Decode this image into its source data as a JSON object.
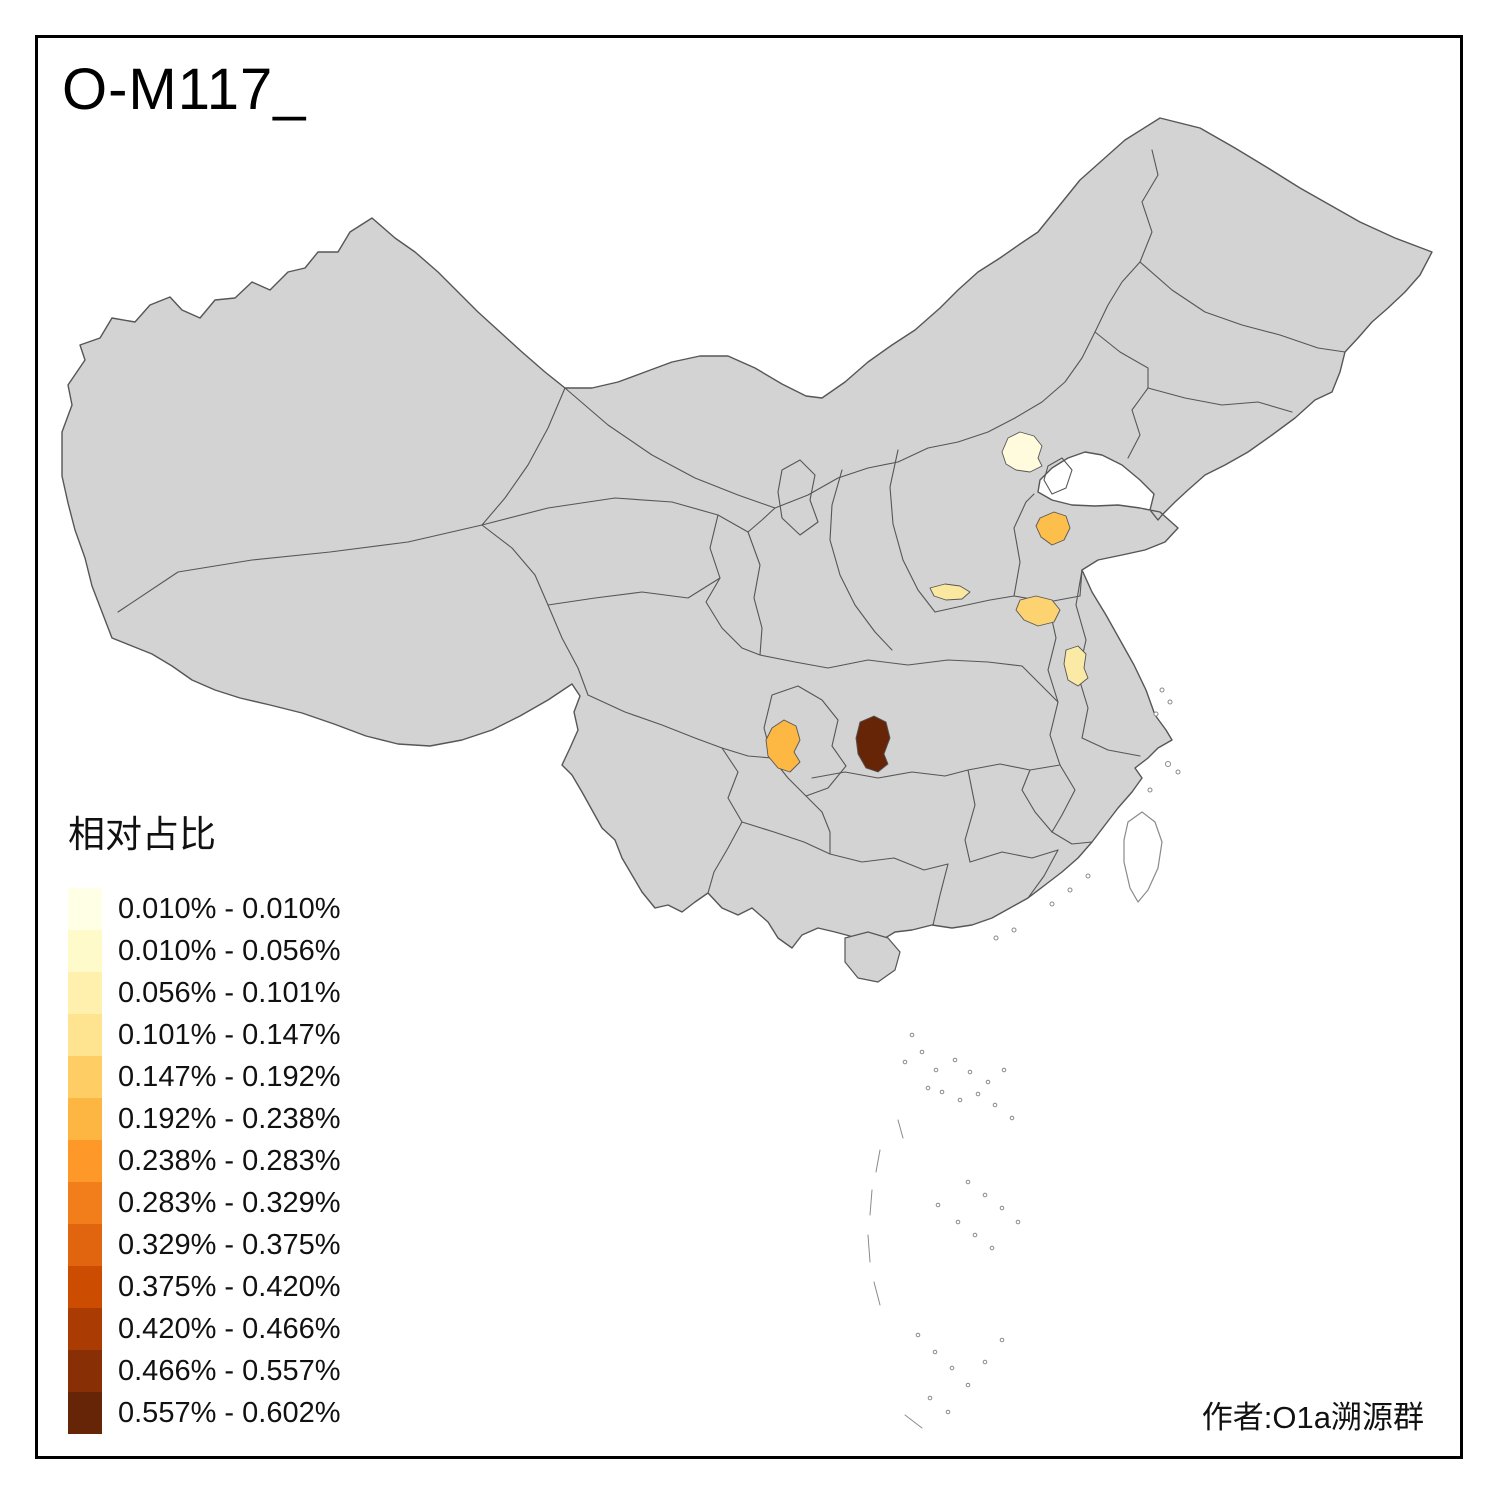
{
  "title": "O-M117_",
  "author_credit": "作者:O1a溯源群",
  "legend": {
    "title": "相对占比",
    "items": [
      {
        "color": "#FFFFE5",
        "label": "0.010% - 0.010%"
      },
      {
        "color": "#FFFACA",
        "label": "0.010% - 0.056%"
      },
      {
        "color": "#FFF0AE",
        "label": "0.056% - 0.101%"
      },
      {
        "color": "#FEE391",
        "label": "0.101% - 0.147%"
      },
      {
        "color": "#FECE65",
        "label": "0.147% - 0.192%"
      },
      {
        "color": "#FEB642",
        "label": "0.192% - 0.238%"
      },
      {
        "color": "#FE9929",
        "label": "0.238% - 0.283%"
      },
      {
        "color": "#F27E1B",
        "label": "0.283% - 0.329%"
      },
      {
        "color": "#E1640E",
        "label": "0.329% - 0.375%"
      },
      {
        "color": "#CC4C02",
        "label": "0.375% - 0.420%"
      },
      {
        "color": "#AA3C03",
        "label": "0.420% - 0.466%"
      },
      {
        "color": "#882F05",
        "label": "0.466% - 0.557%"
      },
      {
        "color": "#662506",
        "label": "0.557% - 0.602%"
      }
    ]
  },
  "map": {
    "land_color": "#D3D3D3",
    "border_color": "#565656",
    "background_color": "#FFFFFF",
    "highlighted_regions": [
      {
        "name": "region-beijing-area",
        "color": "#FFFBDC"
      },
      {
        "name": "region-shandong-central",
        "color": "#FDBF4B"
      },
      {
        "name": "region-shanxi-south-area",
        "color": "#FBE8A0"
      },
      {
        "name": "region-henan-east-area",
        "color": "#FDD271"
      },
      {
        "name": "region-jiangsu-north-area",
        "color": "#FBE9A6"
      },
      {
        "name": "region-chongqing-area",
        "color": "#FDB743"
      },
      {
        "name": "region-hubei-hunan-border",
        "color": "#662506"
      }
    ]
  }
}
